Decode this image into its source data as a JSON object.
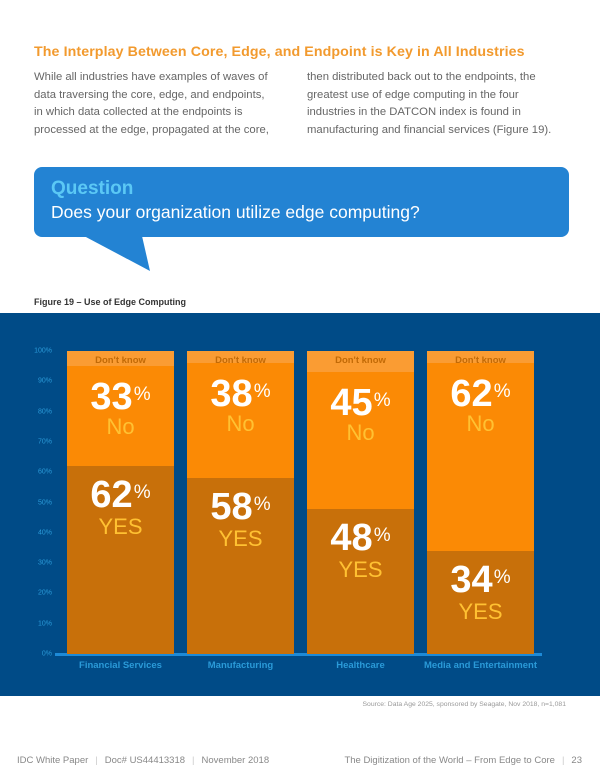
{
  "heading": "The Interplay Between Core, Edge, and Endpoint is Key in All Industries",
  "body_left": "While all industries have examples of waves of data traversing the core, edge, and endpoints, in which data collected at the endpoints is processed at the edge, propagated at the core,",
  "body_right": "then distributed back out to the endpoints, the greatest use of edge computing in the four industries in the DATCON index is found in manufacturing and financial services (Figure 19).",
  "question": {
    "label": "Question",
    "text": "Does your organization utilize edge computing?"
  },
  "figure_caption": "Figure 19 – Use of Edge Computing",
  "chart_data": {
    "type": "bar",
    "stacked": true,
    "title": "Figure 19 – Use of Edge Computing",
    "xlabel": "",
    "ylabel": "",
    "ylim": [
      0,
      100
    ],
    "y_ticks": [
      "0%",
      "10%",
      "20%",
      "30%",
      "40%",
      "50%",
      "60%",
      "70%",
      "80%",
      "90%",
      "100%"
    ],
    "categories": [
      "Financial Services",
      "Manufacturing",
      "Healthcare",
      "Media and Entertainment"
    ],
    "series": [
      {
        "name": "YES",
        "values": [
          62,
          58,
          48,
          34
        ],
        "color": "#c8700a"
      },
      {
        "name": "No",
        "values": [
          33,
          38,
          45,
          62
        ],
        "color": "#fb8a05"
      },
      {
        "name": "Don't know",
        "values": [
          5,
          4,
          7,
          4
        ],
        "color": "#fa9c33"
      }
    ],
    "dont_know_label": "Don't know",
    "yes_label": "YES",
    "no_label": "No",
    "percent_sign": "%"
  },
  "source": "Source: Data Age 2025, sponsored by Seagate, Nov 2018, n=1,081",
  "footer": {
    "left": [
      "IDC White Paper",
      "Doc# US44413318",
      "November 2018"
    ],
    "right_title": "The Digitization of the World – From Edge to Core",
    "page": "23",
    "separator": "|"
  }
}
